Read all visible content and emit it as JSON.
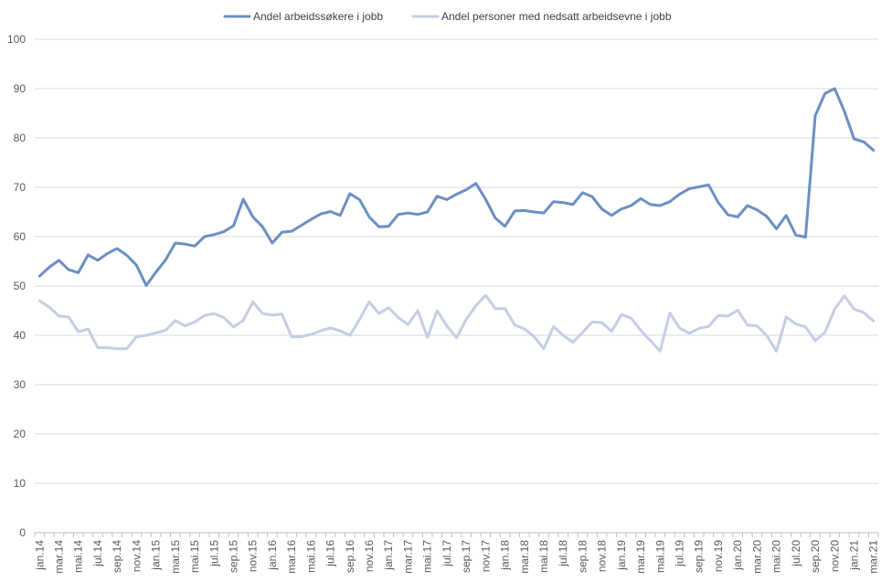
{
  "chart_data": {
    "type": "line",
    "title": "",
    "xlabel": "",
    "ylabel": "",
    "ylim": [
      0,
      100
    ],
    "yticks": [
      0,
      10,
      20,
      30,
      40,
      50,
      60,
      70,
      80,
      90,
      100
    ],
    "grid": "horizontal",
    "legend_position": "top",
    "x": [
      "jan.14",
      "feb.14",
      "mar.14",
      "apr.14",
      "mai.14",
      "jun.14",
      "jul.14",
      "aug.14",
      "sep.14",
      "okt.14",
      "nov.14",
      "des.14",
      "jan.15",
      "feb.15",
      "mar.15",
      "apr.15",
      "mai.15",
      "jun.15",
      "jul.15",
      "aug.15",
      "sep.15",
      "okt.15",
      "nov.15",
      "des.15",
      "jan.16",
      "feb.16",
      "mar.16",
      "apr.16",
      "mai.16",
      "jun.16",
      "jul.16",
      "aug.16",
      "sep.16",
      "okt.16",
      "nov.16",
      "des.16",
      "jan.17",
      "feb.17",
      "mar.17",
      "apr.17",
      "mai.17",
      "jun.17",
      "jul.17",
      "aug.17",
      "sep.17",
      "okt.17",
      "nov.17",
      "des.17",
      "jan.18",
      "feb.18",
      "mar.18",
      "apr.18",
      "mai.18",
      "jun.18",
      "jul.18",
      "aug.18",
      "sep.18",
      "okt.18",
      "nov.18",
      "des.18",
      "jan.19",
      "feb.19",
      "mar.19",
      "apr.19",
      "mai.19",
      "jun.19",
      "jul.19",
      "aug.19",
      "sep.19",
      "okt.19",
      "nov.19",
      "des.19",
      "jan.20",
      "feb.20",
      "mar.20",
      "apr.20",
      "mai.20",
      "jun.20",
      "jul.20",
      "aug.20",
      "sep.20",
      "okt.20",
      "nov.20",
      "des.20",
      "jan.21",
      "feb.21",
      "mar.21"
    ],
    "series": [
      {
        "name": "Andel arbeidssøkere i jobb",
        "color": "#6b8fc3",
        "values": [
          52.0,
          53.8,
          55.2,
          53.3,
          52.7,
          56.3,
          55.2,
          56.6,
          57.6,
          56.2,
          54.2,
          50.1,
          52.8,
          55.3,
          58.7,
          58.5,
          58.1,
          60.0,
          60.4,
          61.0,
          62.2,
          67.6,
          64.0,
          62.0,
          58.7,
          60.9,
          61.1,
          62.3,
          63.5,
          64.6,
          65.1,
          64.3,
          68.7,
          67.5,
          64.0,
          62.0,
          62.1,
          64.5,
          64.8,
          64.5,
          65.0,
          68.2,
          67.5,
          68.6,
          69.5,
          70.8,
          67.6,
          63.8,
          62.1,
          65.2,
          65.3,
          65.0,
          64.8,
          67.1,
          66.9,
          66.5,
          68.9,
          68.1,
          65.6,
          64.3,
          65.6,
          66.3,
          67.7,
          66.5,
          66.3,
          67.1,
          68.6,
          69.7,
          70.1,
          70.5,
          66.9,
          64.4,
          64.0,
          66.3,
          65.4,
          64.1,
          61.6,
          64.3,
          60.3,
          59.9,
          84.5,
          89.0,
          90.0,
          85.4,
          79.8,
          79.2,
          77.5
        ]
      },
      {
        "name": "Andel personer med nedsatt arbeidsevne i jobb",
        "color": "#c5cde5",
        "values": [
          47.0,
          45.7,
          43.9,
          43.7,
          40.7,
          41.3,
          37.5,
          37.5,
          37.3,
          37.3,
          39.7,
          40.0,
          40.5,
          41.0,
          43.0,
          41.9,
          42.7,
          44.0,
          44.4,
          43.6,
          41.7,
          43.0,
          46.8,
          44.4,
          44.1,
          44.3,
          39.7,
          39.7,
          40.2,
          40.9,
          41.5,
          40.9,
          40.0,
          43.2,
          46.8,
          44.4,
          45.6,
          43.6,
          42.2,
          45.0,
          39.6,
          45.0,
          41.9,
          39.5,
          43.2,
          46.0,
          48.1,
          45.4,
          45.4,
          42.1,
          41.3,
          39.7,
          37.3,
          41.8,
          40.0,
          38.6,
          40.6,
          42.7,
          42.6,
          40.8,
          44.2,
          43.5,
          41.0,
          38.9,
          36.8,
          44.5,
          41.5,
          40.4,
          41.4,
          41.8,
          44.0,
          43.9,
          45.1,
          42.1,
          41.9,
          39.9,
          36.8,
          43.7,
          42.3,
          41.7,
          38.9,
          40.6,
          45.3,
          48.0,
          45.3,
          44.6,
          42.9
        ]
      }
    ]
  }
}
